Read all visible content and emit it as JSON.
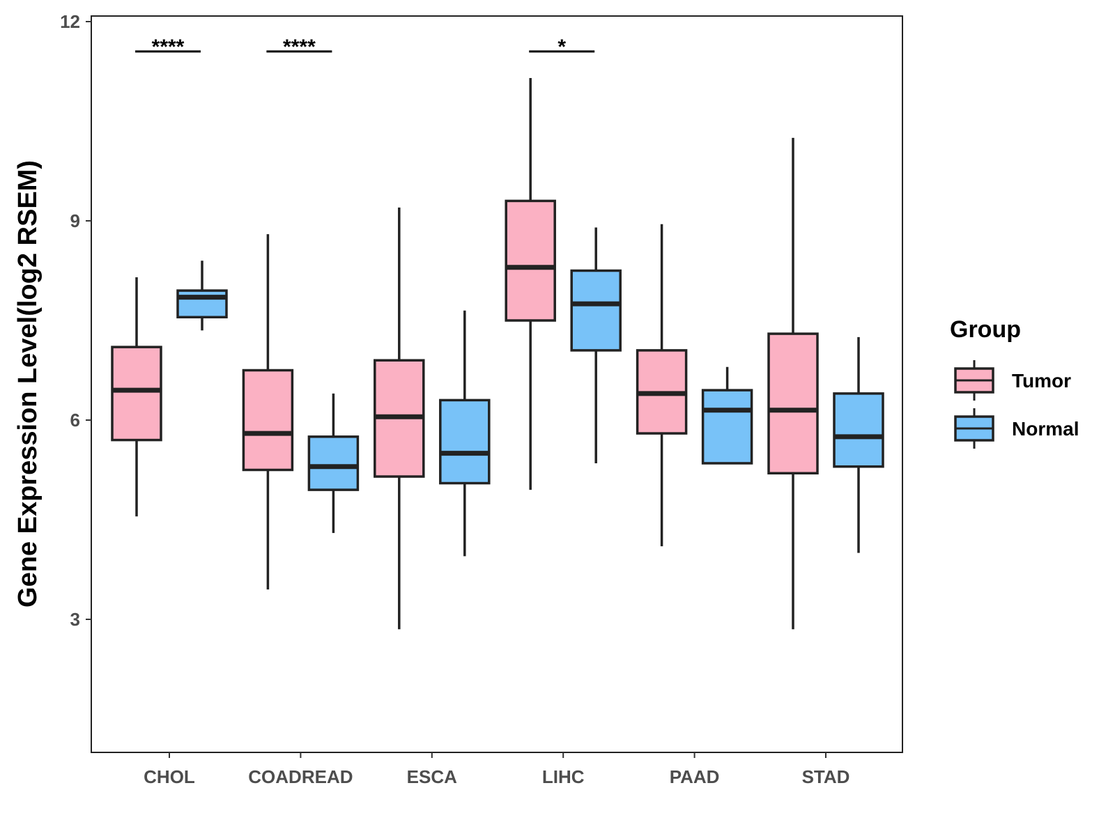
{
  "chart_data": {
    "type": "boxplot",
    "title": "",
    "xlabel": "",
    "ylabel": "Gene Expression Level(log2 RSEM)",
    "ylim": [
      1,
      12
    ],
    "yticks": [
      3,
      6,
      9,
      12
    ],
    "categories": [
      "CHOL",
      "COADREAD",
      "ESCA",
      "LIHC",
      "PAAD",
      "STAD"
    ],
    "legend": {
      "title": "Group",
      "position": "right",
      "entries": [
        {
          "name": "Tumor",
          "color": "#FBB1C3"
        },
        {
          "name": "Normal",
          "color": "#78C2F8"
        }
      ]
    },
    "series": [
      {
        "name": "Tumor",
        "color": "#FBB1C3",
        "boxes": [
          {
            "min": 4.55,
            "q1": 5.7,
            "median": 6.45,
            "q3": 7.1,
            "max": 8.15
          },
          {
            "min": 3.45,
            "q1": 5.25,
            "median": 5.8,
            "q3": 6.75,
            "max": 8.8
          },
          {
            "min": 2.85,
            "q1": 5.15,
            "median": 6.05,
            "q3": 6.9,
            "max": 9.2
          },
          {
            "min": 4.95,
            "q1": 7.5,
            "median": 8.3,
            "q3": 9.3,
            "max": 11.15
          },
          {
            "min": 4.1,
            "q1": 5.8,
            "median": 6.4,
            "q3": 7.05,
            "max": 8.95
          },
          {
            "min": 2.85,
            "q1": 5.2,
            "median": 6.15,
            "q3": 7.3,
            "max": 10.25
          }
        ]
      },
      {
        "name": "Normal",
        "color": "#78C2F8",
        "boxes": [
          {
            "min": 7.35,
            "q1": 7.55,
            "median": 7.85,
            "q3": 7.95,
            "max": 8.4
          },
          {
            "min": 4.3,
            "q1": 4.95,
            "median": 5.3,
            "q3": 5.75,
            "max": 6.4
          },
          {
            "min": 3.95,
            "q1": 5.05,
            "median": 5.5,
            "q3": 6.3,
            "max": 7.65
          },
          {
            "min": 5.35,
            "q1": 7.05,
            "median": 7.75,
            "q3": 8.25,
            "max": 8.9
          },
          {
            "min": 5.35,
            "q1": 5.35,
            "median": 6.15,
            "q3": 6.45,
            "max": 6.8
          },
          {
            "min": 4.0,
            "q1": 5.3,
            "median": 5.75,
            "q3": 6.4,
            "max": 7.25
          }
        ]
      }
    ],
    "significance": [
      {
        "category": "CHOL",
        "label": "****",
        "y": 11.55
      },
      {
        "category": "COADREAD",
        "label": "****",
        "y": 11.55
      },
      {
        "category": "LIHC",
        "label": "*",
        "y": 11.55
      }
    ]
  }
}
